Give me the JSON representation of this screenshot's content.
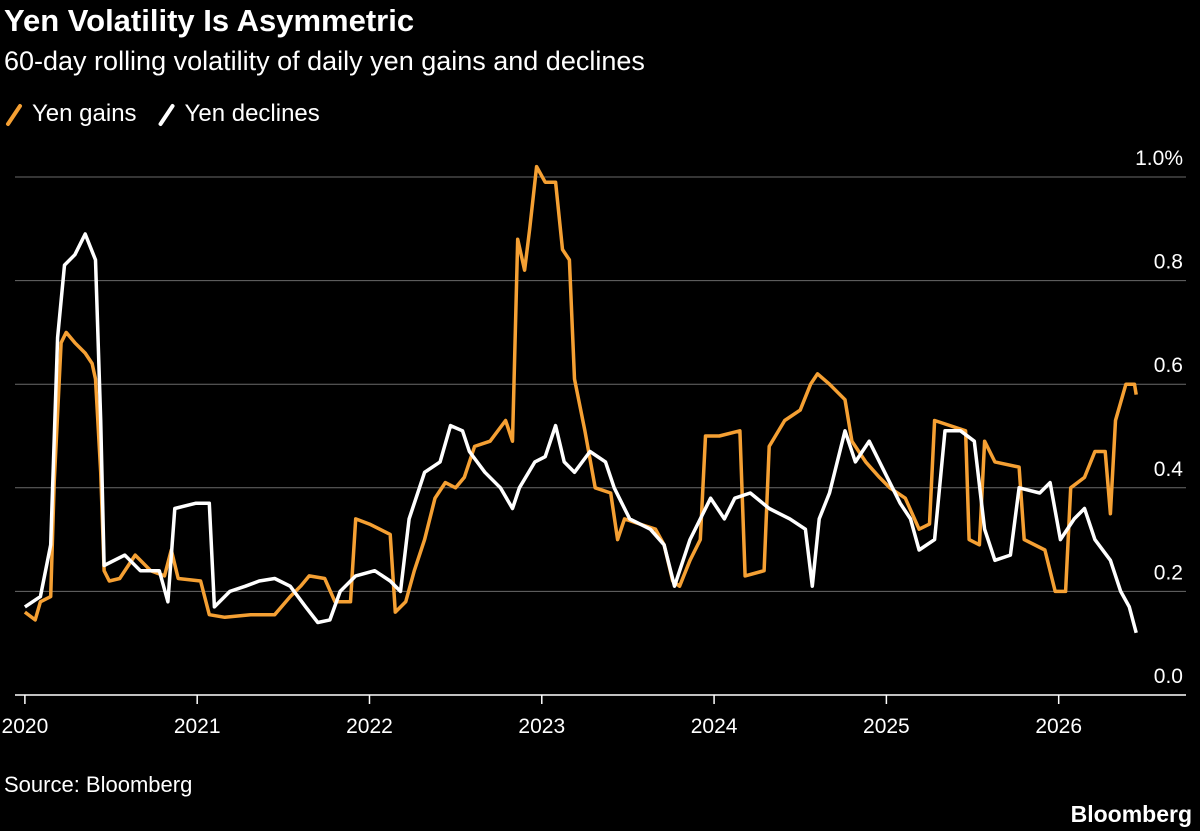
{
  "chart_data": {
    "type": "line",
    "title": "Yen Volatility Is Asymmetric",
    "subtitle": "60-day rolling volatility of daily yen gains and declines",
    "source": "Source: Bloomberg",
    "brand": "Bloomberg",
    "grid": true,
    "xlim": [
      2019.96,
      2026.53
    ],
    "xticks": [
      2020,
      2021,
      2022,
      2023,
      2024,
      2025,
      2026
    ],
    "ylim": [
      0,
      1.0
    ],
    "yticks": [
      {
        "value": 0,
        "label": "0.0"
      },
      0.2,
      0.4,
      0.6,
      0.8,
      {
        "value": 1,
        "label": "1.0%"
      }
    ],
    "series": [
      {
        "name": "Yen gains",
        "color": "#f5a033",
        "x": [
          2020.0,
          2020.06,
          2020.09,
          2020.15,
          2020.17,
          2020.21,
          2020.24,
          2020.29,
          2020.35,
          2020.39,
          2020.41,
          2020.44,
          2020.46,
          2020.49,
          2020.55,
          2020.64,
          2020.73,
          2020.81,
          2020.85,
          2020.89,
          2021.02,
          2021.07,
          2021.16,
          2021.31,
          2021.45,
          2021.54,
          2021.6,
          2021.65,
          2021.74,
          2021.8,
          2021.89,
          2021.92,
          2022.0,
          2022.12,
          2022.15,
          2022.21,
          2022.26,
          2022.32,
          2022.38,
          2022.44,
          2022.5,
          2022.55,
          2022.61,
          2022.7,
          2022.79,
          2022.83,
          2022.86,
          2022.9,
          2022.93,
          2022.97,
          2023.02,
          2023.08,
          2023.12,
          2023.16,
          2023.19,
          2023.25,
          2023.31,
          2023.4,
          2023.44,
          2023.48,
          2023.57,
          2023.66,
          2023.71,
          2023.76,
          2023.8,
          2023.86,
          2023.92,
          2023.95,
          2024.03,
          2024.15,
          2024.18,
          2024.29,
          2024.32,
          2024.41,
          2024.5,
          2024.56,
          2024.6,
          2024.67,
          2024.76,
          2024.8,
          2024.88,
          2024.96,
          2025.02,
          2025.11,
          2025.19,
          2025.25,
          2025.28,
          2025.37,
          2025.46,
          2025.48,
          2025.54,
          2025.57,
          2025.63,
          2025.77,
          2025.8,
          2025.92,
          2025.98,
          2026.04,
          2026.07,
          2026.15,
          2026.21,
          2026.27,
          2026.3,
          2026.33,
          2026.39,
          2026.44,
          2026.45
        ],
        "values": [
          0.16,
          0.145,
          0.18,
          0.19,
          0.41,
          0.68,
          0.7,
          0.68,
          0.66,
          0.64,
          0.61,
          0.43,
          0.24,
          0.22,
          0.225,
          0.27,
          0.24,
          0.23,
          0.28,
          0.225,
          0.22,
          0.155,
          0.15,
          0.155,
          0.155,
          0.19,
          0.21,
          0.23,
          0.225,
          0.18,
          0.18,
          0.34,
          0.33,
          0.31,
          0.16,
          0.18,
          0.24,
          0.3,
          0.38,
          0.41,
          0.4,
          0.42,
          0.48,
          0.49,
          0.53,
          0.49,
          0.88,
          0.82,
          0.9,
          1.02,
          0.99,
          0.99,
          0.86,
          0.84,
          0.61,
          0.51,
          0.4,
          0.39,
          0.3,
          0.34,
          0.33,
          0.32,
          0.29,
          0.22,
          0.21,
          0.26,
          0.3,
          0.5,
          0.5,
          0.51,
          0.23,
          0.24,
          0.48,
          0.53,
          0.55,
          0.6,
          0.62,
          0.6,
          0.57,
          0.49,
          0.45,
          0.42,
          0.4,
          0.38,
          0.32,
          0.33,
          0.53,
          0.52,
          0.51,
          0.3,
          0.29,
          0.49,
          0.45,
          0.44,
          0.3,
          0.28,
          0.2,
          0.2,
          0.4,
          0.42,
          0.47,
          0.47,
          0.35,
          0.53,
          0.6,
          0.6,
          0.58
        ]
      },
      {
        "name": "Yen declines",
        "color": "#ffffff",
        "x": [
          2020.0,
          2020.09,
          2020.15,
          2020.19,
          2020.23,
          2020.29,
          2020.35,
          2020.41,
          2020.44,
          2020.46,
          2020.58,
          2020.67,
          2020.78,
          2020.83,
          2020.87,
          2020.99,
          2021.07,
          2021.1,
          2021.19,
          2021.28,
          2021.36,
          2021.45,
          2021.54,
          2021.63,
          2021.7,
          2021.77,
          2021.83,
          2021.92,
          2022.03,
          2022.12,
          2022.18,
          2022.23,
          2022.32,
          2022.41,
          2022.47,
          2022.54,
          2022.58,
          2022.67,
          2022.76,
          2022.83,
          2022.87,
          2022.96,
          2023.02,
          2023.08,
          2023.13,
          2023.19,
          2023.28,
          2023.37,
          2023.42,
          2023.51,
          2023.63,
          2023.71,
          2023.77,
          2023.86,
          2023.98,
          2024.06,
          2024.12,
          2024.21,
          2024.32,
          2024.44,
          2024.53,
          2024.57,
          2024.61,
          2024.67,
          2024.76,
          2024.82,
          2024.9,
          2024.99,
          2025.08,
          2025.14,
          2025.19,
          2025.28,
          2025.34,
          2025.43,
          2025.51,
          2025.57,
          2025.63,
          2025.72,
          2025.77,
          2025.89,
          2025.95,
          2026.01,
          2026.09,
          2026.15,
          2026.21,
          2026.3,
          2026.36,
          2026.41,
          2026.45
        ],
        "values": [
          0.17,
          0.19,
          0.29,
          0.69,
          0.83,
          0.85,
          0.89,
          0.84,
          0.53,
          0.25,
          0.27,
          0.24,
          0.24,
          0.18,
          0.36,
          0.37,
          0.37,
          0.17,
          0.2,
          0.21,
          0.22,
          0.225,
          0.21,
          0.17,
          0.14,
          0.145,
          0.2,
          0.23,
          0.24,
          0.22,
          0.2,
          0.34,
          0.43,
          0.45,
          0.52,
          0.51,
          0.47,
          0.43,
          0.4,
          0.36,
          0.4,
          0.45,
          0.46,
          0.52,
          0.45,
          0.43,
          0.47,
          0.45,
          0.4,
          0.34,
          0.32,
          0.29,
          0.21,
          0.3,
          0.38,
          0.34,
          0.38,
          0.39,
          0.36,
          0.34,
          0.32,
          0.21,
          0.34,
          0.39,
          0.51,
          0.45,
          0.49,
          0.43,
          0.37,
          0.34,
          0.28,
          0.3,
          0.51,
          0.51,
          0.49,
          0.32,
          0.26,
          0.27,
          0.4,
          0.39,
          0.41,
          0.3,
          0.34,
          0.36,
          0.3,
          0.26,
          0.2,
          0.17,
          0.12
        ]
      }
    ]
  }
}
